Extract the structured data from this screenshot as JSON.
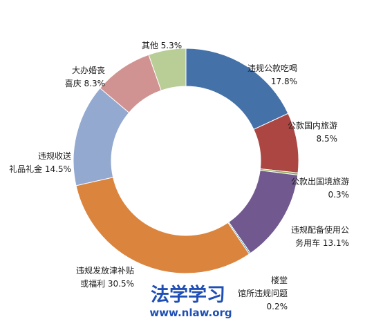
{
  "chart_data": {
    "type": "pie",
    "donut": true,
    "unit": "%",
    "legend": "none",
    "slices": [
      {
        "label_lines": [
          "违规公款吃喝",
          "17.8%"
        ],
        "value": 17.8,
        "color": "#4472a8"
      },
      {
        "label_lines": [
          "公款国内旅游",
          "8.5%"
        ],
        "value": 8.5,
        "color": "#ab4643"
      },
      {
        "label_lines": [
          "公款出国境旅游",
          "0.3%"
        ],
        "value": 0.3,
        "color": "#89a54e"
      },
      {
        "label_lines": [
          "违规配备使用公",
          "务用车 13.1%"
        ],
        "value": 13.1,
        "color": "#71588f"
      },
      {
        "label_lines": [
          "楼堂",
          "馆所违规问题",
          "0.2%"
        ],
        "value": 0.2,
        "color": "#4198af"
      },
      {
        "label_lines": [
          "违规发放津补贴",
          "或福利 30.5%"
        ],
        "value": 30.5,
        "color": "#db843d"
      },
      {
        "label_lines": [
          "违规收送",
          "礼品礼金 14.5%"
        ],
        "value": 14.5,
        "color": "#93a9cf"
      },
      {
        "label_lines": [
          "大办婚丧",
          "喜庆 8.3%"
        ],
        "value": 8.3,
        "color": "#d19392"
      },
      {
        "label_lines": [
          "其他 5.3%"
        ],
        "value": 5.3,
        "color": "#b9cd96"
      }
    ]
  },
  "watermark": {
    "title": "法学学习",
    "url": "www.nlaw.org"
  }
}
